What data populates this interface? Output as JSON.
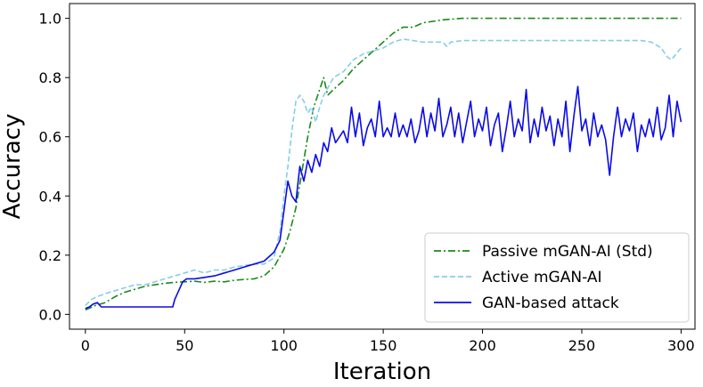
{
  "chart_data": {
    "type": "line",
    "title": "",
    "xlabel": "Iteration",
    "ylabel": "Accuracy",
    "xlim": [
      -8,
      307
    ],
    "ylim": [
      -0.05,
      1.05
    ],
    "xticks": [
      0,
      50,
      100,
      150,
      200,
      250,
      300
    ],
    "yticks": [
      0.0,
      0.2,
      0.4,
      0.6,
      0.8,
      1.0
    ],
    "xtick_labels": [
      "0",
      "50",
      "100",
      "150",
      "200",
      "250",
      "300"
    ],
    "ytick_labels": [
      "0.0",
      "0.2",
      "0.4",
      "0.6",
      "0.8",
      "1.0"
    ],
    "legend_position": "bottom-right",
    "series": [
      {
        "name": "Passive mGAN-AI (Std)",
        "color": "#1a8a1a",
        "style": "dashdot",
        "points": [
          [
            0,
            0.015
          ],
          [
            5,
            0.03
          ],
          [
            10,
            0.04
          ],
          [
            15,
            0.06
          ],
          [
            20,
            0.075
          ],
          [
            25,
            0.085
          ],
          [
            30,
            0.095
          ],
          [
            35,
            0.1
          ],
          [
            40,
            0.105
          ],
          [
            45,
            0.108
          ],
          [
            50,
            0.11
          ],
          [
            55,
            0.112
          ],
          [
            60,
            0.108
          ],
          [
            65,
            0.112
          ],
          [
            70,
            0.11
          ],
          [
            75,
            0.115
          ],
          [
            80,
            0.118
          ],
          [
            85,
            0.12
          ],
          [
            90,
            0.13
          ],
          [
            95,
            0.16
          ],
          [
            100,
            0.22
          ],
          [
            103,
            0.28
          ],
          [
            106,
            0.36
          ],
          [
            109,
            0.48
          ],
          [
            112,
            0.6
          ],
          [
            115,
            0.7
          ],
          [
            118,
            0.76
          ],
          [
            120,
            0.8
          ],
          [
            122,
            0.74
          ],
          [
            125,
            0.76
          ],
          [
            130,
            0.79
          ],
          [
            135,
            0.83
          ],
          [
            140,
            0.86
          ],
          [
            145,
            0.89
          ],
          [
            150,
            0.92
          ],
          [
            155,
            0.95
          ],
          [
            160,
            0.97
          ],
          [
            165,
            0.97
          ],
          [
            170,
            0.985
          ],
          [
            175,
            0.99
          ],
          [
            180,
            0.995
          ],
          [
            190,
            1.0
          ],
          [
            200,
            1.0
          ],
          [
            220,
            1.0
          ],
          [
            240,
            1.0
          ],
          [
            260,
            1.0
          ],
          [
            280,
            1.0
          ],
          [
            300,
            1.0
          ]
        ]
      },
      {
        "name": "Active mGAN-AI",
        "color": "#87cde8",
        "style": "dashed",
        "points": [
          [
            0,
            0.03
          ],
          [
            3,
            0.05
          ],
          [
            6,
            0.06
          ],
          [
            10,
            0.07
          ],
          [
            15,
            0.08
          ],
          [
            20,
            0.09
          ],
          [
            25,
            0.1
          ],
          [
            30,
            0.1
          ],
          [
            35,
            0.11
          ],
          [
            40,
            0.12
          ],
          [
            45,
            0.13
          ],
          [
            50,
            0.14
          ],
          [
            55,
            0.15
          ],
          [
            60,
            0.14
          ],
          [
            65,
            0.15
          ],
          [
            70,
            0.15
          ],
          [
            75,
            0.16
          ],
          [
            80,
            0.165
          ],
          [
            85,
            0.17
          ],
          [
            90,
            0.17
          ],
          [
            95,
            0.19
          ],
          [
            98,
            0.28
          ],
          [
            100,
            0.4
          ],
          [
            102,
            0.5
          ],
          [
            104,
            0.62
          ],
          [
            106,
            0.72
          ],
          [
            108,
            0.74
          ],
          [
            110,
            0.72
          ],
          [
            112,
            0.68
          ],
          [
            114,
            0.7
          ],
          [
            116,
            0.65
          ],
          [
            118,
            0.7
          ],
          [
            120,
            0.74
          ],
          [
            125,
            0.8
          ],
          [
            130,
            0.82
          ],
          [
            135,
            0.86
          ],
          [
            140,
            0.88
          ],
          [
            145,
            0.89
          ],
          [
            150,
            0.9
          ],
          [
            155,
            0.92
          ],
          [
            160,
            0.93
          ],
          [
            165,
            0.925
          ],
          [
            170,
            0.92
          ],
          [
            180,
            0.92
          ],
          [
            182,
            0.905
          ],
          [
            184,
            0.92
          ],
          [
            190,
            0.925
          ],
          [
            200,
            0.925
          ],
          [
            220,
            0.925
          ],
          [
            240,
            0.925
          ],
          [
            260,
            0.925
          ],
          [
            280,
            0.925
          ],
          [
            285,
            0.92
          ],
          [
            290,
            0.9
          ],
          [
            293,
            0.87
          ],
          [
            295,
            0.86
          ],
          [
            297,
            0.875
          ],
          [
            300,
            0.9
          ]
        ]
      },
      {
        "name": "GAN-based attack",
        "color": "#0b0be6",
        "style": "solid",
        "points": [
          [
            0,
            0.02
          ],
          [
            2,
            0.025
          ],
          [
            4,
            0.035
          ],
          [
            6,
            0.04
          ],
          [
            8,
            0.025
          ],
          [
            10,
            0.025
          ],
          [
            20,
            0.025
          ],
          [
            30,
            0.025
          ],
          [
            40,
            0.025
          ],
          [
            44,
            0.025
          ],
          [
            45,
            0.05
          ],
          [
            47,
            0.08
          ],
          [
            49,
            0.11
          ],
          [
            51,
            0.12
          ],
          [
            55,
            0.12
          ],
          [
            60,
            0.125
          ],
          [
            65,
            0.13
          ],
          [
            70,
            0.14
          ],
          [
            75,
            0.15
          ],
          [
            80,
            0.16
          ],
          [
            85,
            0.17
          ],
          [
            90,
            0.18
          ],
          [
            95,
            0.21
          ],
          [
            98,
            0.25
          ],
          [
            100,
            0.35
          ],
          [
            102,
            0.45
          ],
          [
            104,
            0.4
          ],
          [
            106,
            0.38
          ],
          [
            108,
            0.5
          ],
          [
            110,
            0.45
          ],
          [
            112,
            0.52
          ],
          [
            114,
            0.48
          ],
          [
            116,
            0.54
          ],
          [
            118,
            0.5
          ],
          [
            120,
            0.58
          ],
          [
            122,
            0.55
          ],
          [
            124,
            0.63
          ],
          [
            126,
            0.58
          ],
          [
            128,
            0.6
          ],
          [
            130,
            0.62
          ],
          [
            132,
            0.58
          ],
          [
            134,
            0.7
          ],
          [
            136,
            0.6
          ],
          [
            138,
            0.68
          ],
          [
            140,
            0.57
          ],
          [
            142,
            0.63
          ],
          [
            144,
            0.66
          ],
          [
            146,
            0.6
          ],
          [
            148,
            0.72
          ],
          [
            150,
            0.6
          ],
          [
            152,
            0.63
          ],
          [
            154,
            0.6
          ],
          [
            156,
            0.68
          ],
          [
            158,
            0.6
          ],
          [
            160,
            0.64
          ],
          [
            162,
            0.6
          ],
          [
            164,
            0.66
          ],
          [
            166,
            0.58
          ],
          [
            168,
            0.62
          ],
          [
            170,
            0.7
          ],
          [
            172,
            0.6
          ],
          [
            174,
            0.68
          ],
          [
            176,
            0.62
          ],
          [
            178,
            0.73
          ],
          [
            180,
            0.6
          ],
          [
            182,
            0.64
          ],
          [
            184,
            0.7
          ],
          [
            186,
            0.6
          ],
          [
            188,
            0.68
          ],
          [
            190,
            0.58
          ],
          [
            192,
            0.65
          ],
          [
            194,
            0.72
          ],
          [
            196,
            0.6
          ],
          [
            198,
            0.66
          ],
          [
            200,
            0.62
          ],
          [
            202,
            0.7
          ],
          [
            204,
            0.57
          ],
          [
            206,
            0.64
          ],
          [
            208,
            0.68
          ],
          [
            210,
            0.55
          ],
          [
            212,
            0.63
          ],
          [
            214,
            0.72
          ],
          [
            216,
            0.6
          ],
          [
            218,
            0.66
          ],
          [
            220,
            0.62
          ],
          [
            222,
            0.76
          ],
          [
            224,
            0.58
          ],
          [
            226,
            0.66
          ],
          [
            228,
            0.6
          ],
          [
            230,
            0.7
          ],
          [
            232,
            0.62
          ],
          [
            234,
            0.67
          ],
          [
            236,
            0.57
          ],
          [
            238,
            0.66
          ],
          [
            240,
            0.6
          ],
          [
            242,
            0.72
          ],
          [
            244,
            0.55
          ],
          [
            246,
            0.67
          ],
          [
            248,
            0.77
          ],
          [
            250,
            0.62
          ],
          [
            252,
            0.66
          ],
          [
            254,
            0.57
          ],
          [
            256,
            0.68
          ],
          [
            258,
            0.6
          ],
          [
            260,
            0.64
          ],
          [
            262,
            0.59
          ],
          [
            264,
            0.47
          ],
          [
            266,
            0.6
          ],
          [
            268,
            0.7
          ],
          [
            270,
            0.6
          ],
          [
            272,
            0.66
          ],
          [
            274,
            0.62
          ],
          [
            276,
            0.68
          ],
          [
            278,
            0.55
          ],
          [
            280,
            0.64
          ],
          [
            282,
            0.6
          ],
          [
            284,
            0.66
          ],
          [
            286,
            0.6
          ],
          [
            288,
            0.7
          ],
          [
            290,
            0.59
          ],
          [
            292,
            0.63
          ],
          [
            294,
            0.74
          ],
          [
            296,
            0.6
          ],
          [
            298,
            0.72
          ],
          [
            300,
            0.65
          ]
        ]
      }
    ]
  }
}
